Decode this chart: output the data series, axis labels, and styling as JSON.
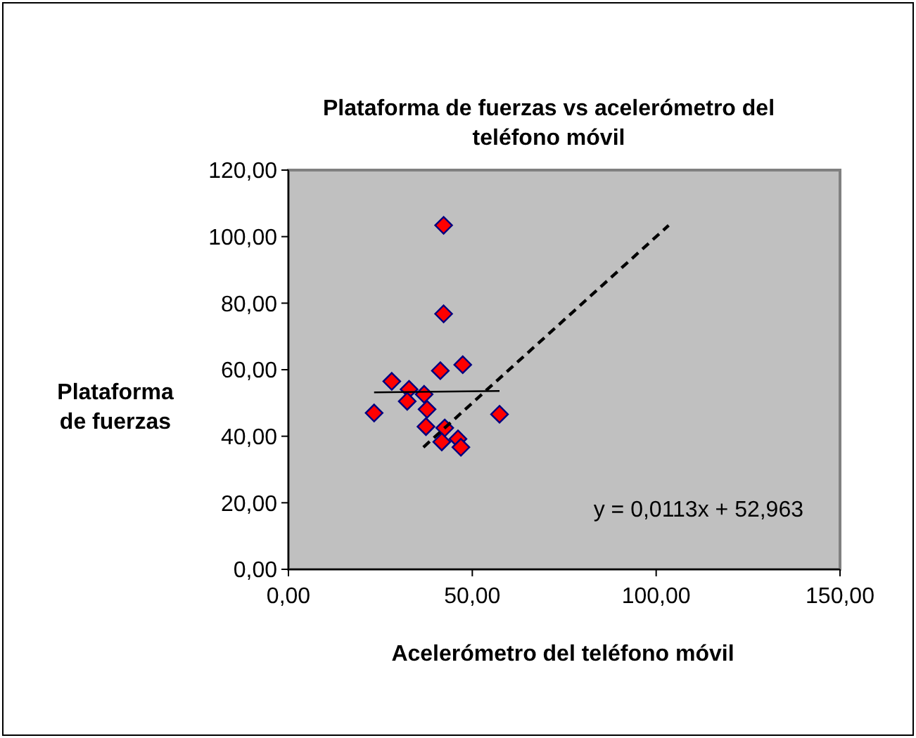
{
  "chart_data": {
    "type": "scatter",
    "title": "Plataforma de fuerzas vs acelerómetro del teléfono móvil",
    "xlabel": "Acelerómetro del teléfono móvil",
    "ylabel": "Plataforma de fuerzas",
    "xlim": [
      0,
      150
    ],
    "ylim": [
      0,
      120
    ],
    "xticks": [
      {
        "value": 0,
        "label": "0,00"
      },
      {
        "value": 50,
        "label": "50,00"
      },
      {
        "value": 100,
        "label": "100,00"
      },
      {
        "value": 150,
        "label": "150,00"
      }
    ],
    "yticks": [
      {
        "value": 0,
        "label": "0,00"
      },
      {
        "value": 20,
        "label": "20,00"
      },
      {
        "value": 40,
        "label": "40,00"
      },
      {
        "value": 60,
        "label": "60,00"
      },
      {
        "value": 80,
        "label": "80,00"
      },
      {
        "value": 100,
        "label": "100,00"
      },
      {
        "value": 120,
        "label": "120,00"
      }
    ],
    "grid": false,
    "marker": "diamond",
    "series": [
      {
        "color": "#ff0000",
        "x": [
          42.2,
          42.2,
          41.3,
          47.4,
          28.1,
          32.8,
          36.9,
          32.3,
          37.7,
          23.3,
          57.4,
          37.4,
          42.5,
          41.7,
          46.1,
          46.9
        ],
        "values": [
          103.4,
          76.8,
          59.7,
          61.5,
          56.5,
          54.1,
          52.6,
          50.5,
          48.1,
          47.0,
          46.6,
          42.9,
          42.5,
          38.3,
          39.2,
          36.7
        ]
      },
      {
        "type": "line",
        "color": "#000000",
        "line_style": "solid",
        "marker": "none",
        "x": [
          23.3,
          57.4
        ],
        "values": [
          53.2,
          53.6
        ]
      },
      {
        "type": "line",
        "color": "#000000",
        "line_style": "dashed",
        "marker": "none",
        "x": [
          36.7,
          103.4
        ],
        "values": [
          36.7,
          103.4
        ]
      }
    ],
    "annotations": [
      "y = 0,0113x + 52,963"
    ]
  }
}
